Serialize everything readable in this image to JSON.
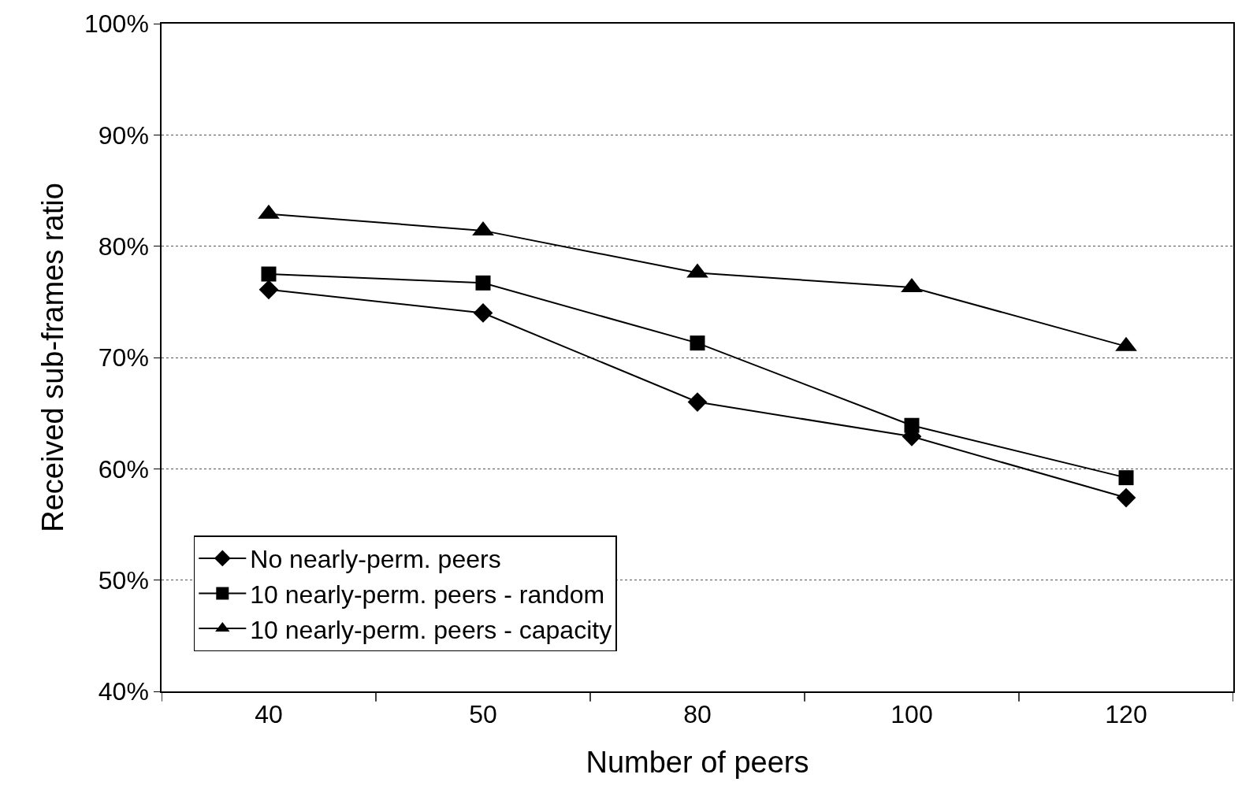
{
  "chart_data": {
    "type": "line",
    "xlabel": "Number of peers",
    "ylabel": "Received sub-frames ratio",
    "categories": [
      "40",
      "50",
      "80",
      "100",
      "120"
    ],
    "series": [
      {
        "name": "No nearly-perm. peers",
        "color": "#000000",
        "marker": "diamond",
        "values": [
          76.1,
          74.0,
          66.0,
          62.9,
          57.4
        ]
      },
      {
        "name": "10 nearly-perm. peers - random",
        "color": "#000000",
        "marker": "square",
        "values": [
          77.5,
          76.7,
          71.3,
          63.9,
          59.2
        ]
      },
      {
        "name": "10 nearly-perm. peers - capacity",
        "color": "#000000",
        "marker": "triangle",
        "values": [
          82.9,
          81.4,
          77.6,
          76.3,
          71.0
        ]
      }
    ],
    "ylim": [
      40,
      100
    ],
    "yticks": [
      {
        "value": 40,
        "label": "40%"
      },
      {
        "value": 50,
        "label": "50%"
      },
      {
        "value": 60,
        "label": "60%"
      },
      {
        "value": 70,
        "label": "70%"
      },
      {
        "value": 80,
        "label": "80%"
      },
      {
        "value": 90,
        "label": "90%"
      },
      {
        "value": 100,
        "label": "100%"
      }
    ],
    "grid": "y",
    "legend": "bottom left",
    "line_style": "solid"
  }
}
